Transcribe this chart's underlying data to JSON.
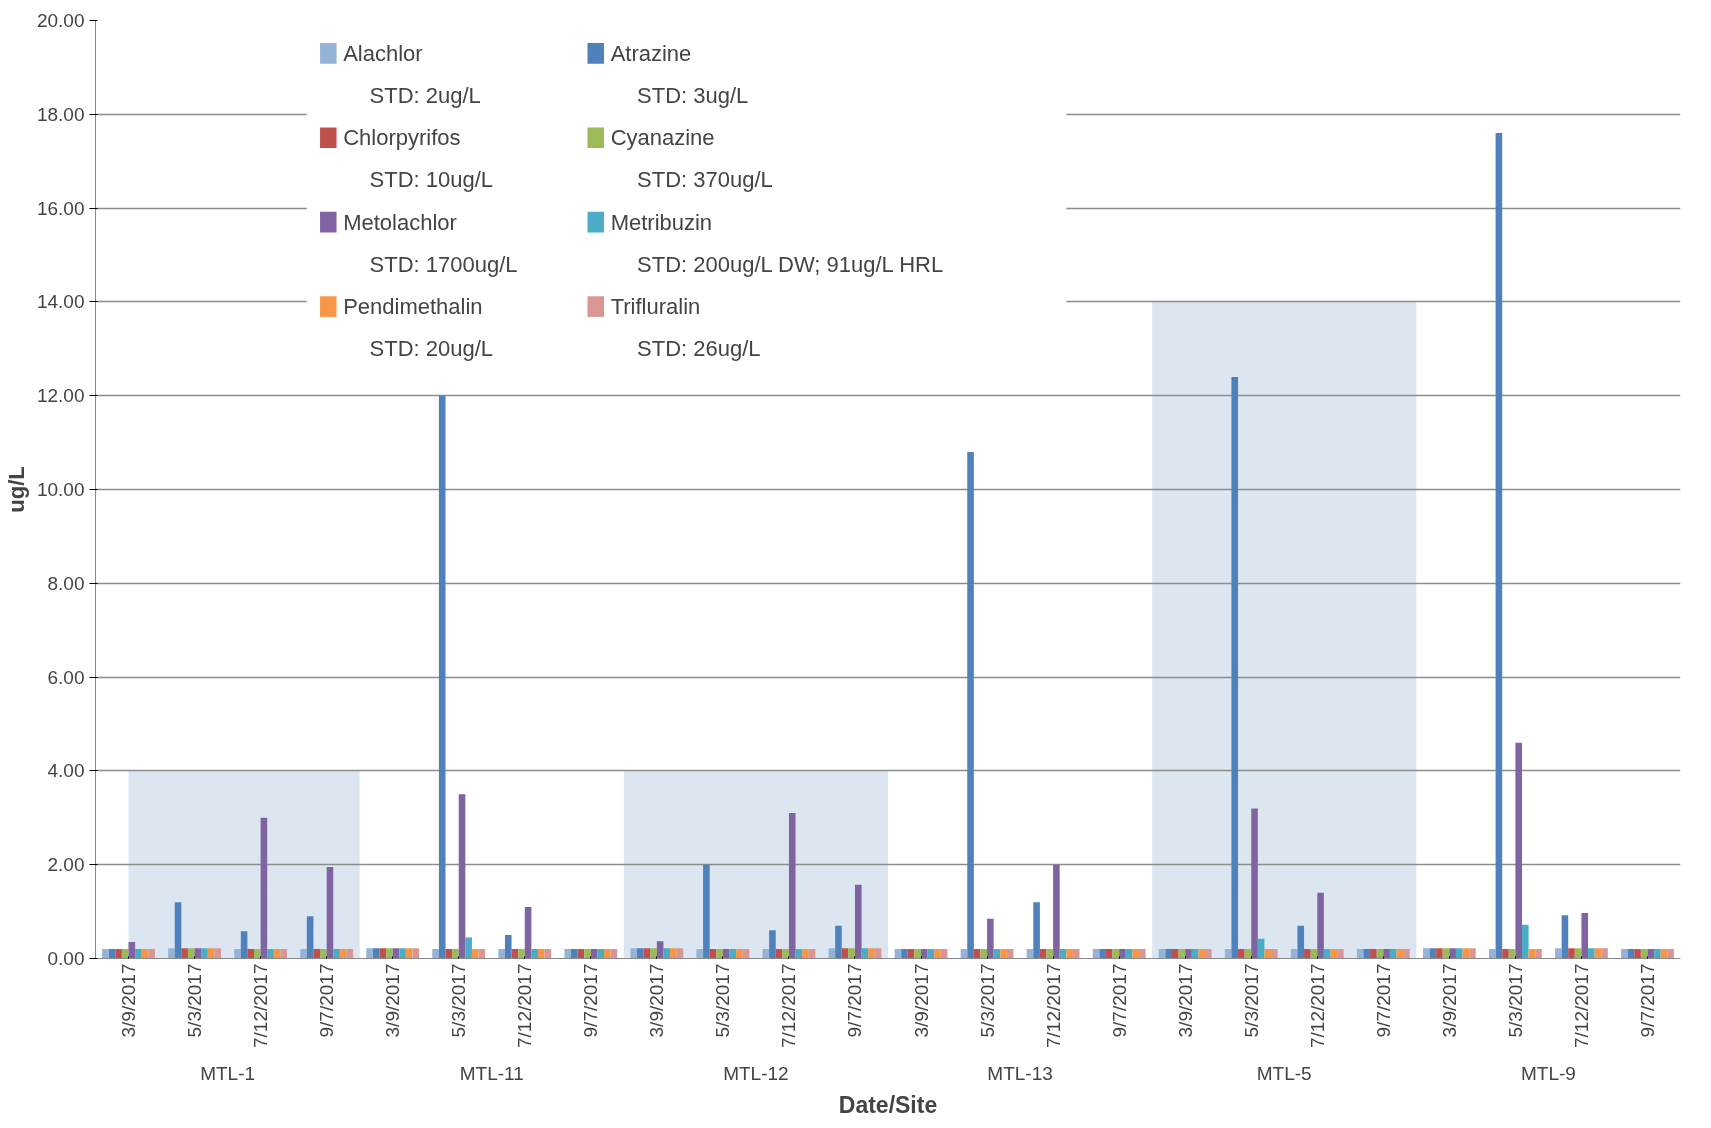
{
  "chart_data": {
    "type": "bar",
    "xlabel": "Date/Site",
    "ylabel": "ug/L",
    "categories": [
      "3/9/2017",
      "5/3/2017",
      "7/12/2017",
      "9/7/2017",
      "3/9/2017",
      "5/3/2017",
      "7/12/2017",
      "9/7/2017",
      "3/9/2017",
      "5/3/2017",
      "7/12/2017",
      "9/7/2017",
      "3/9/2017",
      "5/3/2017",
      "7/12/2017",
      "9/7/2017",
      "3/9/2017",
      "5/3/2017",
      "7/12/2017",
      "9/7/2017",
      "3/9/2017",
      "5/3/2017",
      "7/12/2017",
      "9/7/2017"
    ],
    "annotations": [
      "MTL-1",
      "MTL-11",
      "MTL-12",
      "MTL-13",
      "MTL-5",
      "MTL-9"
    ],
    "ylim": [
      0,
      20
    ],
    "yticks": [
      {
        "value": 0,
        "label": "0.00"
      },
      {
        "value": 2,
        "label": "2.00"
      },
      {
        "value": 4,
        "label": "4.00"
      },
      {
        "value": 6,
        "label": "6.00"
      },
      {
        "value": 8,
        "label": "8.00"
      },
      {
        "value": 10,
        "label": "10.00"
      },
      {
        "value": 12,
        "label": "12.00"
      },
      {
        "value": 14,
        "label": "14.00"
      },
      {
        "value": 16,
        "label": "16.00"
      },
      {
        "value": 18,
        "label": "18.00"
      },
      {
        "value": 20,
        "label": "20.00"
      }
    ],
    "grid": "y",
    "legend": "top left",
    "series": [
      {
        "type": "area",
        "color": "#dce6f1",
        "values": [
          4,
          4,
          4,
          4,
          0,
          0,
          0,
          0,
          4,
          4,
          4,
          4,
          0,
          0,
          0,
          0,
          14,
          14,
          14,
          14,
          0,
          0,
          0,
          0
        ]
      },
      {
        "name": "Alachlor\nSTD: 2ug/L",
        "color": "#95b3d7",
        "values": [
          0.2,
          0.22,
          0.2,
          0.2,
          0.22,
          0.2,
          0.2,
          0.2,
          0.22,
          0.2,
          0.2,
          0.22,
          0.2,
          0.2,
          0.2,
          0.2,
          0.2,
          0.2,
          0.2,
          0.2,
          0.22,
          0.2,
          0.22,
          0.2
        ]
      },
      {
        "name": "Atrazine\nSTD: 3ug/L",
        "color": "#4f81bd",
        "values": [
          0.2,
          1.2,
          0.58,
          0.9,
          0.22,
          12.0,
          0.5,
          0.2,
          0.22,
          2.0,
          0.6,
          0.7,
          0.2,
          10.8,
          1.2,
          0.2,
          0.2,
          12.4,
          0.7,
          0.2,
          0.22,
          17.6,
          0.92,
          0.2
        ]
      },
      {
        "name": "Chlorpyrifos\nSTD: 10ug/L",
        "color": "#c0504d",
        "values": [
          0.2,
          0.22,
          0.2,
          0.2,
          0.22,
          0.2,
          0.2,
          0.2,
          0.22,
          0.2,
          0.2,
          0.22,
          0.2,
          0.2,
          0.2,
          0.2,
          0.2,
          0.2,
          0.2,
          0.2,
          0.22,
          0.2,
          0.22,
          0.2
        ]
      },
      {
        "name": "Cyanazine\nSTD: 370ug/L",
        "color": "#9bbb59",
        "values": [
          0.2,
          0.22,
          0.2,
          0.2,
          0.22,
          0.2,
          0.2,
          0.2,
          0.22,
          0.2,
          0.2,
          0.22,
          0.2,
          0.2,
          0.2,
          0.2,
          0.2,
          0.2,
          0.2,
          0.2,
          0.22,
          0.2,
          0.22,
          0.2
        ]
      },
      {
        "name": "Metolachlor\nSTD: 1700ug/L",
        "color": "#8064a2",
        "values": [
          0.35,
          0.22,
          3.0,
          1.95,
          0.22,
          3.5,
          1.1,
          0.2,
          0.37,
          0.2,
          3.1,
          1.57,
          0.2,
          0.85,
          2.0,
          0.2,
          0.2,
          3.2,
          1.4,
          0.2,
          0.22,
          4.6,
          0.97,
          0.2
        ]
      },
      {
        "name": "Metribuzin\nSTD: 200ug/L DW; 91ug/L HRL",
        "color": "#4bacc6",
        "values": [
          0.2,
          0.22,
          0.2,
          0.2,
          0.22,
          0.45,
          0.2,
          0.2,
          0.22,
          0.2,
          0.2,
          0.22,
          0.2,
          0.2,
          0.2,
          0.2,
          0.2,
          0.42,
          0.2,
          0.2,
          0.22,
          0.72,
          0.22,
          0.2
        ]
      },
      {
        "name": "Pendimethalin\nSTD: 20ug/L",
        "color": "#f79646",
        "values": [
          0.2,
          0.22,
          0.2,
          0.2,
          0.22,
          0.2,
          0.2,
          0.2,
          0.22,
          0.2,
          0.2,
          0.22,
          0.2,
          0.2,
          0.2,
          0.2,
          0.2,
          0.2,
          0.2,
          0.2,
          0.22,
          0.2,
          0.22,
          0.2
        ]
      },
      {
        "name": "Trifluralin\nSTD: 26ug/L",
        "color": "#da9694",
        "values": [
          0.2,
          0.22,
          0.2,
          0.2,
          0.22,
          0.2,
          0.2,
          0.2,
          0.22,
          0.2,
          0.2,
          0.22,
          0.2,
          0.2,
          0.2,
          0.2,
          0.2,
          0.2,
          0.2,
          0.2,
          0.22,
          0.2,
          0.22,
          0.2
        ]
      }
    ]
  }
}
